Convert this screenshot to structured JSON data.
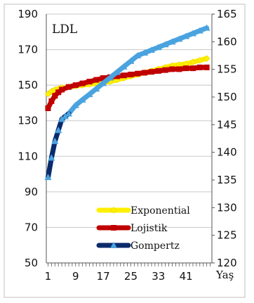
{
  "chart_data": {
    "type": "line",
    "title": "LDL",
    "xlabel": "Yaş",
    "ylabel": "",
    "ylim": [
      50,
      190
    ],
    "y2lim": [
      120,
      165
    ],
    "xlim": [
      1,
      48
    ],
    "yticks": [
      50,
      70,
      90,
      110,
      130,
      150,
      170,
      190
    ],
    "y2ticks": [
      120,
      125,
      130,
      135,
      140,
      145,
      150,
      155,
      160,
      165
    ],
    "xticks": [
      1,
      9,
      17,
      25,
      33,
      41
    ],
    "grid": "horizontal",
    "legend": "bottom-right",
    "series": [
      {
        "name": "Exponential",
        "axis": "left",
        "color": "#ffef00",
        "marker": "diamond",
        "x": [
          1,
          2,
          3,
          4,
          5,
          7,
          9,
          11,
          13,
          15,
          17,
          19,
          21,
          23,
          25,
          27,
          29,
          31,
          33,
          35,
          37,
          39,
          41,
          43,
          45,
          47
        ],
        "y": [
          145,
          146.5,
          147.5,
          148,
          148.5,
          149,
          149.5,
          150,
          150.5,
          151,
          151.5,
          152,
          153,
          154,
          155,
          156,
          157,
          158,
          159,
          160,
          161,
          161.5,
          162,
          163,
          164,
          165
        ]
      },
      {
        "name": "Lojistik",
        "axis": "left",
        "color": "#c00000",
        "marker": "square",
        "x": [
          1,
          2,
          3,
          4,
          5,
          7,
          9,
          11,
          13,
          15,
          17,
          19,
          21,
          23,
          25,
          27,
          29,
          31,
          33,
          35,
          37,
          39,
          41,
          43,
          45,
          47
        ],
        "y": [
          137,
          141,
          144,
          146,
          147.5,
          149,
          150,
          151,
          152,
          153,
          154,
          154.5,
          155,
          155.5,
          156,
          156.5,
          157,
          157.5,
          158,
          158.5,
          159,
          159,
          159.5,
          159.5,
          160,
          160
        ]
      },
      {
        "name": "Gompertz",
        "axis": "right",
        "color": "#4aa3df",
        "line_color": "#0a2a6b",
        "marker": "triangle",
        "x": [
          1,
          2,
          3,
          4,
          5,
          6,
          7,
          9,
          11,
          13,
          15,
          17,
          19,
          21,
          23,
          25,
          27,
          29,
          31,
          33,
          35,
          37,
          39,
          41,
          43,
          45,
          47
        ],
        "y": [
          135.5,
          139,
          142,
          144,
          146,
          146.5,
          147,
          148.5,
          149.5,
          150.5,
          151.5,
          152.5,
          153.5,
          154.5,
          155.5,
          156.5,
          157.5,
          158,
          158.5,
          159,
          159.5,
          160,
          160.5,
          161,
          161.5,
          162,
          162.5
        ]
      }
    ]
  }
}
